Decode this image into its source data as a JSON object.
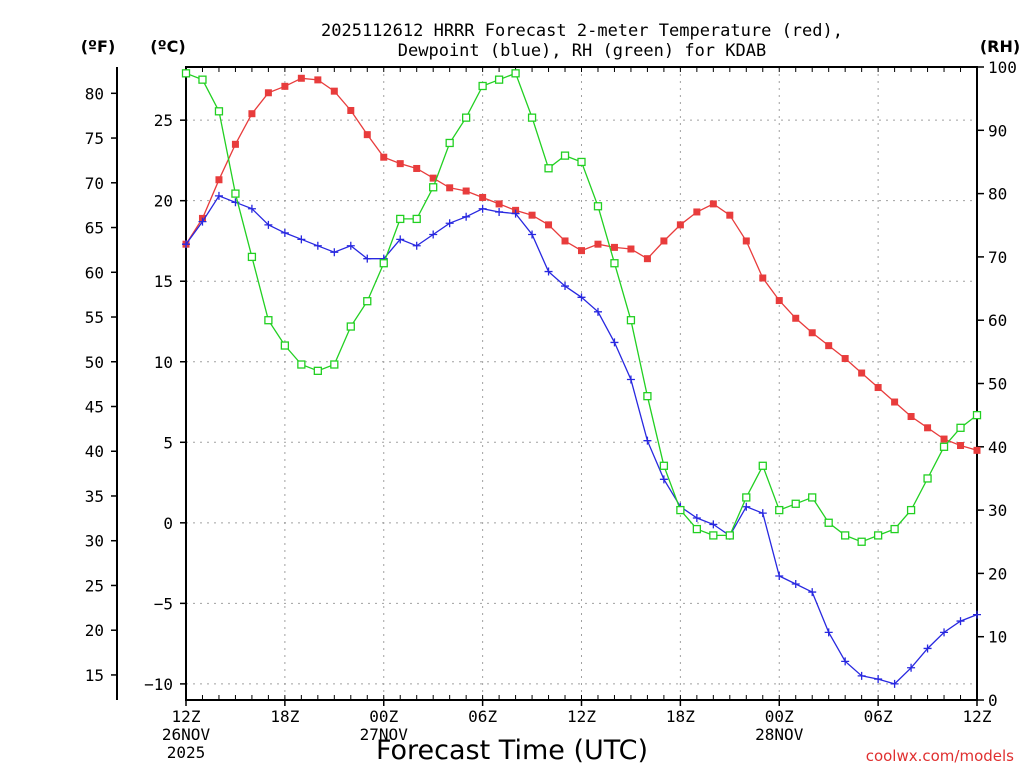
{
  "chart_data": {
    "type": "line",
    "title_line1": "2025112612 HRRR Forecast 2-meter Temperature (red),",
    "title_line2": "Dewpoint (blue), RH (green) for KDAB",
    "xlabel": "Forecast Time (UTC)",
    "credit": "coolwx.com/models",
    "units": {
      "fahrenheit": "(ºF)",
      "celsius": "(ºC)",
      "rh": "(RH)"
    },
    "hours_range": [
      0,
      48
    ],
    "celsius_range": [
      -11,
      28.3
    ],
    "rh_range": [
      0,
      100
    ],
    "fahrenheit_ticks": [
      "15",
      "20",
      "25",
      "30",
      "35",
      "40",
      "45",
      "50",
      "55",
      "60",
      "65",
      "70",
      "75",
      "80"
    ],
    "celsius_ticks": [
      "-10",
      "-5",
      "0",
      "5",
      "10",
      "15",
      "20",
      "25"
    ],
    "rh_ticks": [
      "0",
      "10",
      "20",
      "30",
      "40",
      "50",
      "60",
      "70",
      "80",
      "90",
      "100"
    ],
    "x_ticks": [
      {
        "hour": 0,
        "lines": [
          "12Z",
          "26NOV",
          "2025"
        ]
      },
      {
        "hour": 6,
        "lines": [
          "18Z"
        ]
      },
      {
        "hour": 12,
        "lines": [
          "00Z",
          "27NOV"
        ]
      },
      {
        "hour": 18,
        "lines": [
          "06Z"
        ]
      },
      {
        "hour": 24,
        "lines": [
          "12Z"
        ]
      },
      {
        "hour": 30,
        "lines": [
          "18Z"
        ]
      },
      {
        "hour": 36,
        "lines": [
          "00Z",
          "28NOV"
        ]
      },
      {
        "hour": 42,
        "lines": [
          "06Z"
        ]
      },
      {
        "hour": 48,
        "lines": [
          "12Z"
        ]
      }
    ],
    "grid": true,
    "series": [
      {
        "name": "Temperature (red)",
        "units": "C",
        "color": "#e83c3c",
        "marker": "filled-square",
        "values": [
          17.3,
          18.9,
          21.3,
          23.5,
          25.4,
          26.7,
          27.1,
          27.6,
          27.5,
          26.8,
          25.6,
          24.1,
          22.7,
          22.3,
          22.0,
          21.4,
          20.8,
          20.6,
          20.2,
          19.8,
          19.4,
          19.1,
          18.5,
          17.5,
          16.9,
          17.3,
          17.1,
          17.0,
          16.4,
          17.5,
          18.5,
          19.3,
          19.8,
          19.1,
          17.5,
          15.2,
          13.8,
          12.7,
          11.8,
          11.0,
          10.2,
          9.3,
          8.4,
          7.5,
          6.6,
          5.9,
          5.2,
          4.8,
          4.5
        ]
      },
      {
        "name": "Dewpoint (blue)",
        "units": "C",
        "color": "#2828e0",
        "marker": "plus",
        "values": [
          17.3,
          18.7,
          20.3,
          19.9,
          19.5,
          18.5,
          18.0,
          17.6,
          17.2,
          16.8,
          17.2,
          16.4,
          16.4,
          17.6,
          17.2,
          17.9,
          18.6,
          19.0,
          19.5,
          19.3,
          19.2,
          17.9,
          15.6,
          14.7,
          14.0,
          13.1,
          11.2,
          8.9,
          5.1,
          2.7,
          1.0,
          0.3,
          -0.1,
          -0.8,
          1.0,
          0.6,
          -3.3,
          -3.8,
          -4.3,
          -6.8,
          -8.6,
          -9.5,
          -9.7,
          -10.0,
          -9.0,
          -7.8,
          -6.8,
          -6.1,
          -5.7
        ]
      },
      {
        "name": "RH (green)",
        "units": "%",
        "color": "#22d022",
        "marker": "open-square",
        "values": [
          99,
          98,
          93,
          80,
          70,
          60,
          56,
          53,
          52,
          53,
          59,
          63,
          69,
          76,
          76,
          81,
          88,
          92,
          97,
          98,
          99,
          92,
          84,
          86,
          85,
          78,
          69,
          60,
          48,
          37,
          30,
          27,
          26,
          26,
          32,
          37,
          30,
          31,
          32,
          28,
          26,
          25,
          26,
          27,
          30,
          35,
          40,
          43,
          45
        ]
      }
    ]
  }
}
